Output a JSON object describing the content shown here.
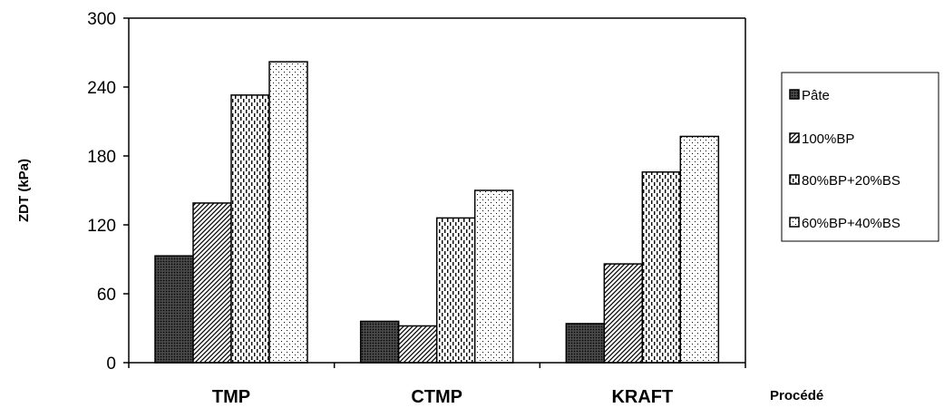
{
  "chart_data": {
    "type": "bar",
    "categories": [
      "TMP",
      "CTMP",
      "KRAFT"
    ],
    "series": [
      {
        "name": "Pâte",
        "values": [
          93,
          36,
          34
        ],
        "pattern": "pat-dark"
      },
      {
        "name": "100%BP",
        "values": [
          139,
          32,
          86
        ],
        "pattern": "pat-diag"
      },
      {
        "name": "80%BP+20%BS",
        "values": [
          233,
          126,
          166
        ],
        "pattern": "pat-dash"
      },
      {
        "name": "60%BP+40%BS",
        "values": [
          262,
          150,
          197
        ],
        "pattern": "pat-dots"
      }
    ],
    "xlabel": "Procédé",
    "ylabel": "ZDT (kPa)",
    "ylim": [
      0,
      300
    ],
    "yticks": [
      "0",
      "60",
      "120",
      "180",
      "240",
      "300"
    ],
    "grid": false,
    "legend_position": "right"
  }
}
